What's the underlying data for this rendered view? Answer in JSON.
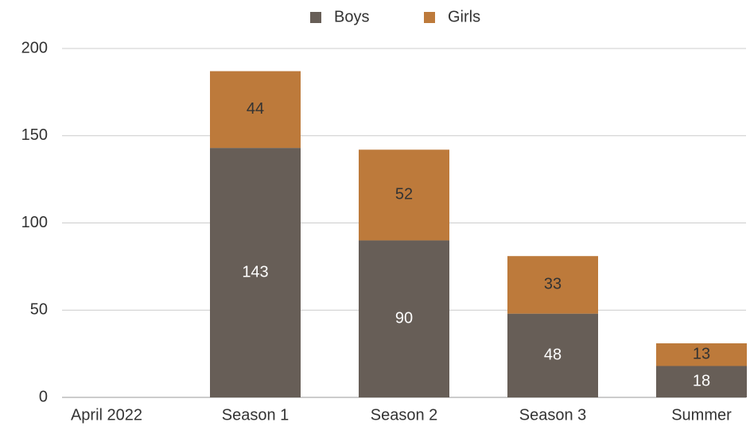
{
  "chart_data": {
    "type": "stacked_bar",
    "categories": [
      "April 2022",
      "Season 1",
      "Season 2",
      "Season 3",
      "Summer"
    ],
    "series": [
      {
        "name": "Boys",
        "color": "#675e57",
        "values": [
          null,
          143,
          90,
          48,
          18
        ]
      },
      {
        "name": "Girls",
        "color": "#bd7a3b",
        "values": [
          null,
          44,
          52,
          33,
          13
        ]
      }
    ],
    "ylim": [
      0,
      200
    ],
    "yticks": [
      0,
      50,
      100,
      150,
      200
    ],
    "grid": true,
    "legend": "top"
  }
}
